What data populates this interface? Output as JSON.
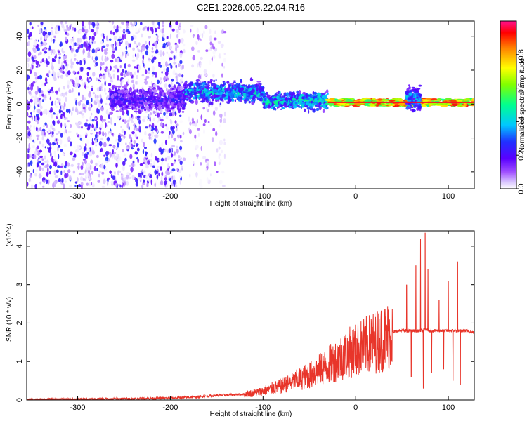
{
  "title": "C2E1.2026.005.22.04.R16",
  "colors": {
    "spectrum_ramp": [
      "#ffffff",
      "#e8d8ff",
      "#9a44ff",
      "#5a00ff",
      "#2a2aff",
      "#00c0ff",
      "#00ff80",
      "#80ff00",
      "#ffff00",
      "#ff8000",
      "#ff0000",
      "#ff00a0"
    ],
    "snr_line": "#e8352a"
  },
  "chart_data": [
    {
      "type": "heatmap",
      "title": "C2E1.2026.005.22.04.R16",
      "xlabel": "Height of straight line (km)",
      "ylabel": "Frequency (Hz)",
      "xlim": [
        -355,
        128
      ],
      "ylim": [
        -50,
        49
      ],
      "xticks": [
        -300,
        -200,
        -100,
        0,
        100
      ],
      "yticks": [
        -40,
        -20,
        0,
        20,
        40
      ],
      "colorbar": {
        "label": "Normalized spectral amplitude",
        "range": [
          0,
          1
        ],
        "ticks": [
          "0.0",
          "0.2",
          "0.4",
          "0.6",
          "0.8"
        ]
      },
      "bands": [
        {
          "x_from": -355,
          "x_to": -185,
          "freq_center": 0,
          "freq_halfwidth": 49,
          "amplitude": 0.12,
          "density": "scattered"
        },
        {
          "x_from": -180,
          "x_to": -140,
          "freq_center": 0,
          "freq_halfwidth": 49,
          "amplitude": 0.05,
          "density": "sparse"
        },
        {
          "x_from": -265,
          "x_to": -185,
          "freq_center": 3,
          "freq_halfwidth": 10,
          "amplitude": 0.22,
          "density": "dense"
        },
        {
          "x_from": -185,
          "x_to": -100,
          "freq_center": 7,
          "freq_halfwidth": 8,
          "amplitude": 0.4,
          "density": "dense"
        },
        {
          "x_from": -100,
          "x_to": -30,
          "freq_center": 2,
          "freq_halfwidth": 7,
          "amplitude": 0.45,
          "density": "dense"
        },
        {
          "x_from": -30,
          "x_to": 128,
          "freq_center": 1,
          "freq_halfwidth": 2,
          "amplitude": 0.9,
          "density": "line"
        },
        {
          "x_from": 55,
          "x_to": 70,
          "freq_center": 3,
          "freq_halfwidth": 10,
          "amplitude": 0.35,
          "density": "burst"
        }
      ]
    },
    {
      "type": "line",
      "xlabel": "Height of straight line (km)",
      "ylabel": "SNR (10 * v/v)",
      "y_multiplier": "(x10^4)",
      "xlim": [
        -355,
        128
      ],
      "ylim": [
        0,
        4.4
      ],
      "xticks": [
        -300,
        -200,
        -100,
        0,
        100
      ],
      "yticks": [
        0,
        1,
        2,
        3,
        4
      ],
      "series": [
        {
          "x": [
            -355,
            -300,
            -250,
            -200,
            -170,
            -150,
            -120,
            -105,
            -90,
            -75,
            -60,
            -45,
            -30,
            -20,
            -10,
            0,
            10,
            20,
            30,
            40,
            45,
            55,
            62,
            68,
            72,
            75,
            80,
            85,
            90,
            95,
            100,
            105,
            110,
            120,
            128
          ],
          "y": [
            0.01,
            0.02,
            0.03,
            0.05,
            0.08,
            0.12,
            0.15,
            0.2,
            0.3,
            0.4,
            0.55,
            0.7,
            0.9,
            1.05,
            1.2,
            1.3,
            1.4,
            1.5,
            1.6,
            1.75,
            1.8,
            1.8,
            1.8,
            1.8,
            1.8,
            1.85,
            1.8,
            1.8,
            1.8,
            1.8,
            1.8,
            1.8,
            1.8,
            1.8,
            1.75
          ]
        }
      ],
      "spikes": [
        {
          "x": 55,
          "y": 3.0
        },
        {
          "x": 60,
          "y": 0.6
        },
        {
          "x": 65,
          "y": 3.5
        },
        {
          "x": 70,
          "y": 4.2
        },
        {
          "x": 73,
          "y": 0.3
        },
        {
          "x": 75,
          "y": 4.35
        },
        {
          "x": 78,
          "y": 3.4
        },
        {
          "x": 82,
          "y": 0.7
        },
        {
          "x": 90,
          "y": 2.6
        },
        {
          "x": 95,
          "y": 0.8
        },
        {
          "x": 100,
          "y": 3.1
        },
        {
          "x": 105,
          "y": 0.5
        },
        {
          "x": 110,
          "y": 3.6
        },
        {
          "x": 113,
          "y": 0.4
        }
      ]
    }
  ]
}
